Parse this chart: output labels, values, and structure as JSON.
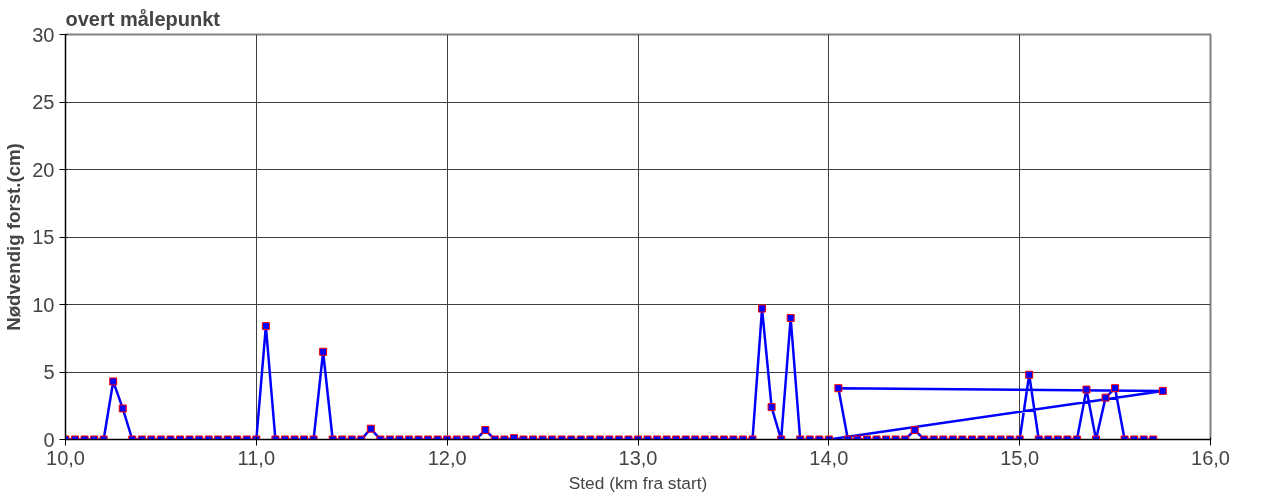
{
  "chart_data": {
    "type": "line",
    "title": "overt målepunkt",
    "xlabel": "Sted (km fra start)",
    "ylabel": "Nødvendig forst.(cm)",
    "xlim": [
      10,
      16
    ],
    "xticks": [
      {
        "value": 10,
        "label": "10,0"
      },
      {
        "value": 11,
        "label": "11,0"
      },
      {
        "value": 12,
        "label": "12,0"
      },
      {
        "value": 13,
        "label": "13,0"
      },
      {
        "value": 14,
        "label": "14,0"
      },
      {
        "value": 15,
        "label": "15,0"
      },
      {
        "value": 16,
        "label": "16,0"
      }
    ],
    "ylim": [
      0,
      30
    ],
    "yticks": [
      0,
      5,
      10,
      15,
      20,
      25,
      30
    ],
    "grid": true,
    "marker": "square",
    "line_style": "solid",
    "series": [
      {
        "color": "#0000ff",
        "x": [
          10.0,
          10.05,
          10.1,
          10.15,
          10.2,
          10.25,
          10.3,
          10.35,
          10.4,
          10.45,
          10.5,
          10.55,
          10.6,
          10.65,
          10.7,
          10.75,
          10.8,
          10.85,
          10.9,
          10.95,
          11.0,
          11.05,
          11.1,
          11.15,
          11.2,
          11.25,
          11.3,
          11.35,
          11.4,
          11.45,
          11.5,
          11.55,
          11.6,
          11.65,
          11.7,
          11.75,
          11.8,
          11.85,
          11.9,
          11.95,
          12.0,
          12.05,
          12.1,
          12.15,
          12.2,
          12.25,
          12.3,
          12.35,
          12.4,
          12.45,
          12.5,
          12.55,
          12.6,
          12.65,
          12.7,
          12.75,
          12.8,
          12.85,
          12.9,
          12.95,
          13.0,
          13.05,
          13.1,
          13.15,
          13.2,
          13.25,
          13.3,
          13.35,
          13.4,
          13.45,
          13.5,
          13.55,
          13.6,
          13.65,
          13.7,
          13.75,
          13.8,
          13.85,
          13.9,
          13.95,
          14.0,
          15.75,
          14.05,
          14.1,
          14.15,
          14.2,
          14.25,
          14.3,
          14.35,
          14.4,
          14.45,
          14.5,
          14.55,
          14.6,
          14.65,
          14.7,
          14.75,
          14.8,
          14.85,
          14.9,
          14.95,
          15.0,
          15.05,
          15.1,
          15.15,
          15.2,
          15.25,
          15.3,
          15.35,
          15.4,
          15.45,
          15.5,
          15.55,
          15.6,
          15.65,
          15.7
        ],
        "values": [
          0,
          0,
          0,
          0,
          0,
          4.3,
          2.3,
          0,
          0,
          0,
          0,
          0,
          0,
          0,
          0,
          0,
          0,
          0,
          0,
          0,
          0,
          8.4,
          0,
          0,
          0,
          0,
          0,
          6.5,
          0,
          0,
          0,
          0,
          0.8,
          0,
          0,
          0,
          0,
          0,
          0,
          0,
          0,
          0,
          0,
          0,
          0.7,
          0,
          0,
          0.1,
          0,
          0,
          0,
          0,
          0,
          0,
          0,
          0,
          0,
          0,
          0,
          0,
          0,
          0,
          0,
          0,
          0,
          0,
          0,
          0,
          0,
          0,
          0,
          0,
          0,
          9.7,
          2.4,
          0,
          9.0,
          0,
          0,
          0,
          0,
          3.6,
          3.8,
          0,
          0,
          0,
          0,
          0,
          0,
          0,
          0.7,
          0,
          0,
          0,
          0,
          0,
          0,
          0,
          0,
          0,
          0,
          0,
          4.8,
          0,
          0,
          0,
          0,
          0,
          3.7,
          0,
          3.1,
          3.8,
          0,
          0,
          0,
          0
        ]
      }
    ]
  }
}
